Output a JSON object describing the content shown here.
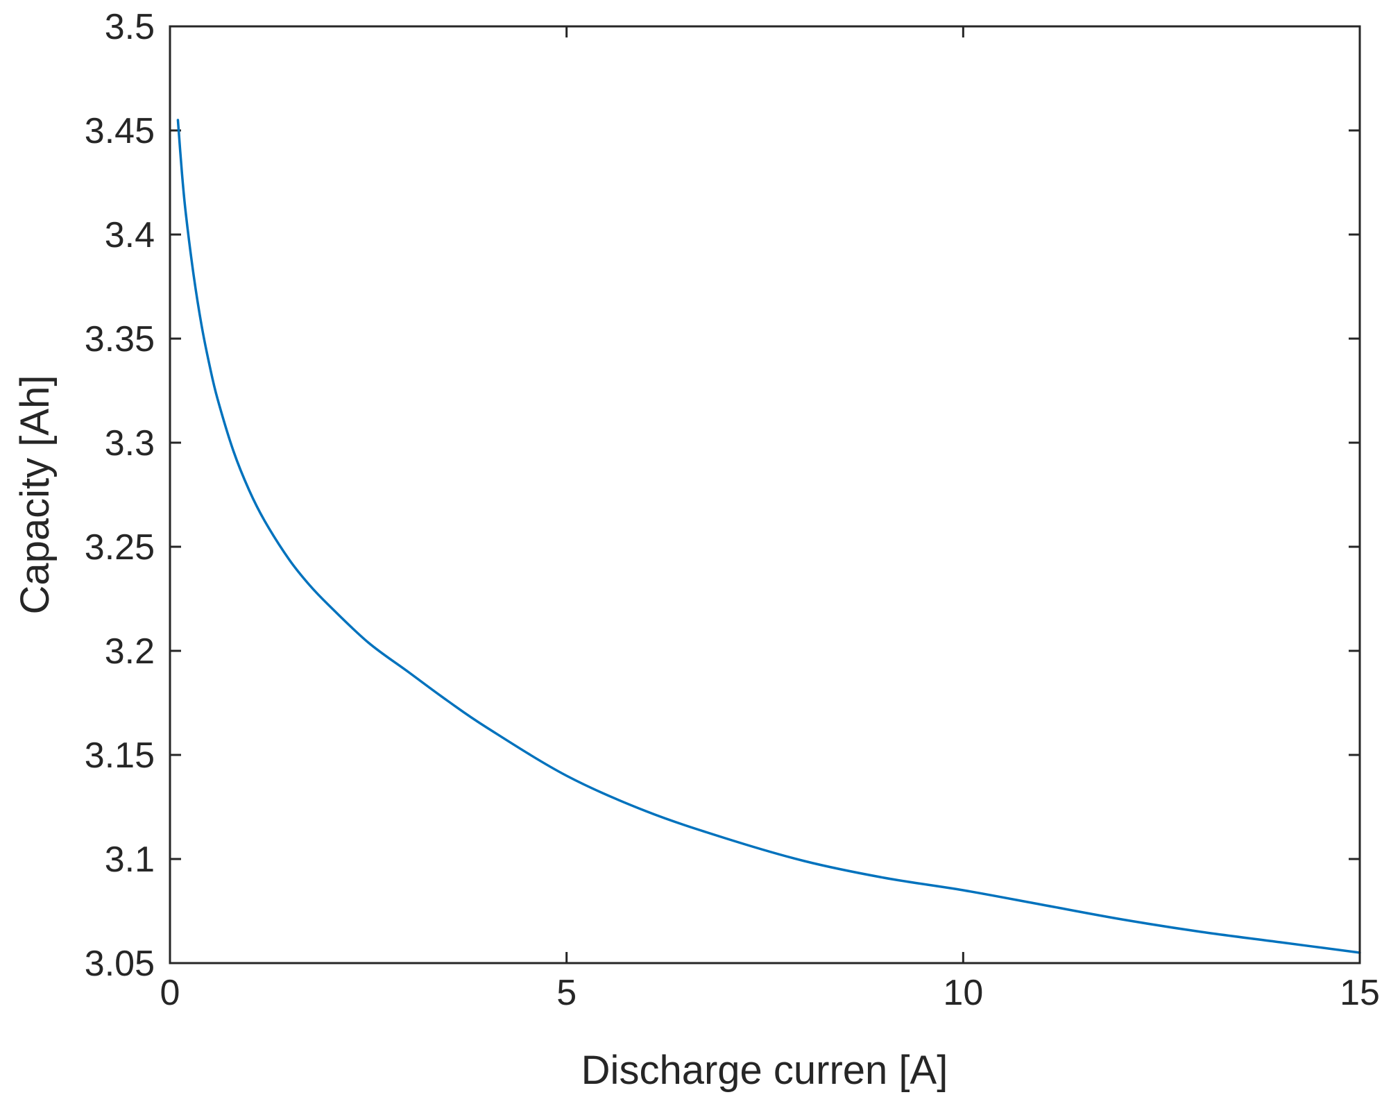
{
  "chart_data": {
    "type": "line",
    "title": "",
    "xlabel": "Discharge curren [A]",
    "ylabel": "Capacity [Ah]",
    "xlim": [
      0,
      15
    ],
    "ylim": [
      3.05,
      3.5
    ],
    "xticks": [
      0,
      5,
      10,
      15
    ],
    "xtick_labels": [
      "0",
      "5",
      "10",
      "15"
    ],
    "yticks": [
      3.05,
      3.1,
      3.15,
      3.2,
      3.25,
      3.3,
      3.35,
      3.4,
      3.45,
      3.5
    ],
    "ytick_labels": [
      "3.05",
      "3.1",
      "3.15",
      "3.2",
      "3.25",
      "3.3",
      "3.35",
      "3.4",
      "3.45",
      "3.5"
    ],
    "grid": false,
    "line_color": "#0072BD",
    "axis_color": "#262626",
    "series": [
      {
        "x": [
          0.1,
          0.15,
          0.2,
          0.3,
          0.4,
          0.5,
          0.6,
          0.8,
          1.0,
          1.2,
          1.5,
          1.75,
          2.0,
          2.5,
          3.0,
          3.5,
          4.0,
          5.0,
          6.0,
          7.0,
          8.0,
          9.0,
          10.0,
          11.0,
          12.0,
          13.0,
          14.0,
          15.0
        ],
        "y": [
          3.455,
          3.43,
          3.41,
          3.38,
          3.356,
          3.337,
          3.321,
          3.296,
          3.277,
          3.262,
          3.244,
          3.232,
          3.222,
          3.204,
          3.19,
          3.176,
          3.163,
          3.14,
          3.123,
          3.11,
          3.099,
          3.091,
          3.085,
          3.078,
          3.071,
          3.065,
          3.06,
          3.055
        ]
      }
    ]
  }
}
